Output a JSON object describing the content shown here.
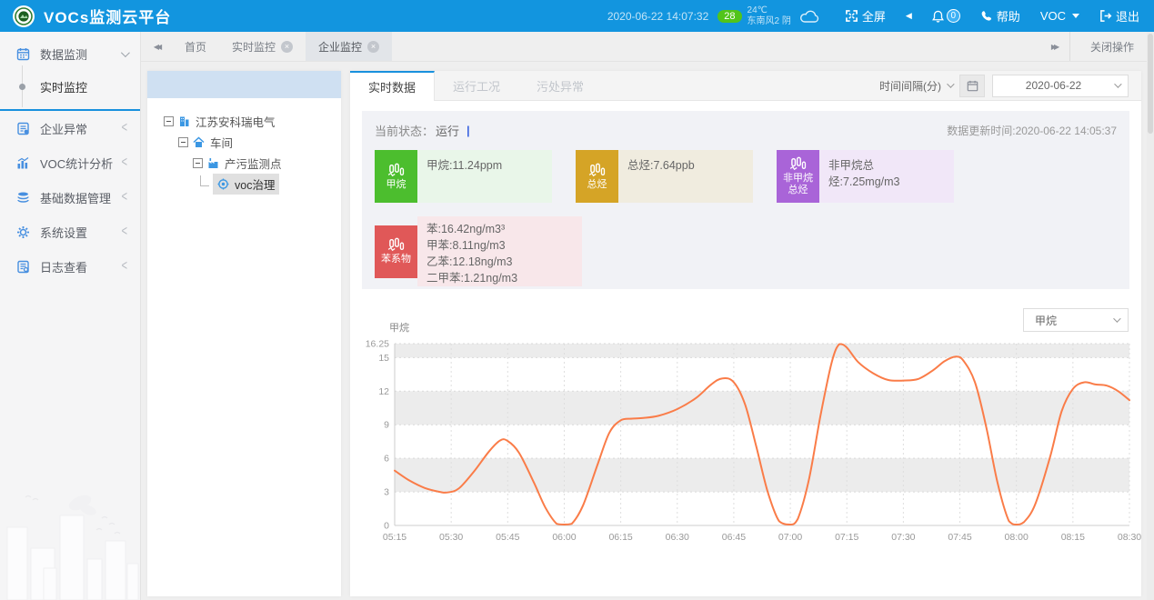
{
  "header": {
    "title": "VOCs监测云平台",
    "datetime": "2020-06-22 14:07:32",
    "aqi": "28",
    "temperature": "24℃",
    "wind": "东南风2 阴",
    "fullscreen": "全屏",
    "notice_count": "0",
    "help": "帮助",
    "user": "VOC",
    "logout": "退出",
    "header_color": "#1295df",
    "aqi_color": "#52c41a"
  },
  "tabbar": {
    "tabs": [
      {
        "label": "首页"
      },
      {
        "label": "实时监控"
      },
      {
        "label": "企业监控"
      }
    ],
    "close_ops": "关闭操作"
  },
  "sidebar": {
    "items": [
      {
        "label": "数据监测",
        "icon": "calendar-icon"
      },
      {
        "label": "实时监控",
        "icon": "dot-indicator"
      },
      {
        "label": "企业异常",
        "icon": "report-icon"
      },
      {
        "label": "VOC统计分析",
        "icon": "bar-chart-icon"
      },
      {
        "label": "基础数据管理",
        "icon": "layers-icon"
      },
      {
        "label": "系统设置",
        "icon": "gear-icon"
      },
      {
        "label": "日志查看",
        "icon": "log-icon"
      }
    ]
  },
  "tree": {
    "nodes": [
      {
        "label": "江苏安科瑞电气",
        "icon": "building-icon"
      },
      {
        "label": "车间",
        "icon": "home-icon"
      },
      {
        "label": "产污监测点",
        "icon": "factory-icon"
      },
      {
        "label": "voc治理",
        "icon": "target-icon"
      }
    ]
  },
  "main": {
    "tabs": [
      {
        "label": "实时数据"
      },
      {
        "label": "运行工况"
      },
      {
        "label": "污处异常"
      }
    ],
    "interval_label": "时间间隔(分)",
    "date_value": "2020-06-22",
    "status_label": "当前状态：",
    "status_value": "运行",
    "update_time": "数据更新时间:2020-06-22 14:05:37",
    "cards": [
      {
        "name": "甲烷",
        "lines": [
          "甲烷:11.24ppm"
        ],
        "icon_bg": "#4cbe2e",
        "panel_bg": "#e9f6e9"
      },
      {
        "name": "总烃",
        "lines": [
          "总烃:7.64ppb"
        ],
        "icon_bg": "#d5a426",
        "panel_bg": "#f0ecdf"
      },
      {
        "name": "非甲烷总烃",
        "lines": [
          "非甲烷总烃:7.25mg/m3"
        ],
        "icon_bg": "#a964d8",
        "panel_bg": "#f1e7f8"
      },
      {
        "name": "苯系物",
        "lines": [
          "苯:16.42ng/m3³",
          "甲苯:8.11ng/m3",
          "乙苯:12.18ng/m3",
          "二甲苯:1.21ng/m3"
        ],
        "icon_bg": "#e05858",
        "panel_bg": "#f8e7ea"
      }
    ],
    "chart_select_value": "甲烷"
  },
  "chart_data": {
    "type": "line",
    "title": "甲烷",
    "ylabel": "甲烷",
    "ylim": [
      0,
      16.25
    ],
    "y_ticks": [
      16.25,
      15,
      12,
      9,
      6,
      3,
      0
    ],
    "x_ticks": [
      "05:15",
      "05:30",
      "05:45",
      "06:00",
      "06:15",
      "06:30",
      "06:45",
      "07:00",
      "07:15",
      "07:30",
      "07:45",
      "08:00",
      "08:15",
      "08:30"
    ],
    "x_total_minutes": 195,
    "grid": true,
    "band_pairs": [
      [
        15,
        16.25
      ],
      [
        9,
        12
      ],
      [
        3,
        6
      ]
    ],
    "band_color": "#ececec",
    "line_color": "#fa7c48",
    "series": [
      {
        "name": "甲烷",
        "points": [
          [
            0,
            4.9
          ],
          [
            4,
            4.0
          ],
          [
            8,
            3.35
          ],
          [
            12,
            3.0
          ],
          [
            14,
            2.95
          ],
          [
            17,
            3.3
          ],
          [
            21,
            4.8
          ],
          [
            25,
            6.6
          ],
          [
            28,
            7.6
          ],
          [
            30,
            7.55
          ],
          [
            33,
            6.5
          ],
          [
            37,
            3.8
          ],
          [
            40,
            1.6
          ],
          [
            43,
            0.15
          ],
          [
            45,
            0.05
          ],
          [
            47,
            0.15
          ],
          [
            50,
            1.8
          ],
          [
            54,
            5.6
          ],
          [
            57,
            8.3
          ],
          [
            60,
            9.4
          ],
          [
            63,
            9.55
          ],
          [
            66,
            9.6
          ],
          [
            70,
            9.8
          ],
          [
            75,
            10.4
          ],
          [
            80,
            11.4
          ],
          [
            84,
            12.6
          ],
          [
            87,
            13.15
          ],
          [
            90,
            12.8
          ],
          [
            93,
            10.8
          ],
          [
            96,
            7.0
          ],
          [
            99,
            3.0
          ],
          [
            102,
            0.4
          ],
          [
            105,
            0.05
          ],
          [
            107,
            0.6
          ],
          [
            110,
            4.2
          ],
          [
            113,
            9.8
          ],
          [
            116,
            14.6
          ],
          [
            118,
            16.2
          ],
          [
            120,
            15.9
          ],
          [
            123,
            14.6
          ],
          [
            127,
            13.6
          ],
          [
            131,
            13.0
          ],
          [
            135,
            12.95
          ],
          [
            139,
            13.1
          ],
          [
            143,
            13.9
          ],
          [
            146,
            14.7
          ],
          [
            149,
            15.1
          ],
          [
            151,
            14.7
          ],
          [
            154,
            12.8
          ],
          [
            157,
            8.8
          ],
          [
            160,
            3.8
          ],
          [
            163,
            0.4
          ],
          [
            165,
            0.05
          ],
          [
            167,
            0.3
          ],
          [
            170,
            1.9
          ],
          [
            174,
            6.2
          ],
          [
            177,
            10.2
          ],
          [
            180,
            12.2
          ],
          [
            183,
            12.8
          ],
          [
            186,
            12.6
          ],
          [
            189,
            12.5
          ],
          [
            192,
            12.0
          ],
          [
            195,
            11.2
          ]
        ]
      }
    ]
  }
}
